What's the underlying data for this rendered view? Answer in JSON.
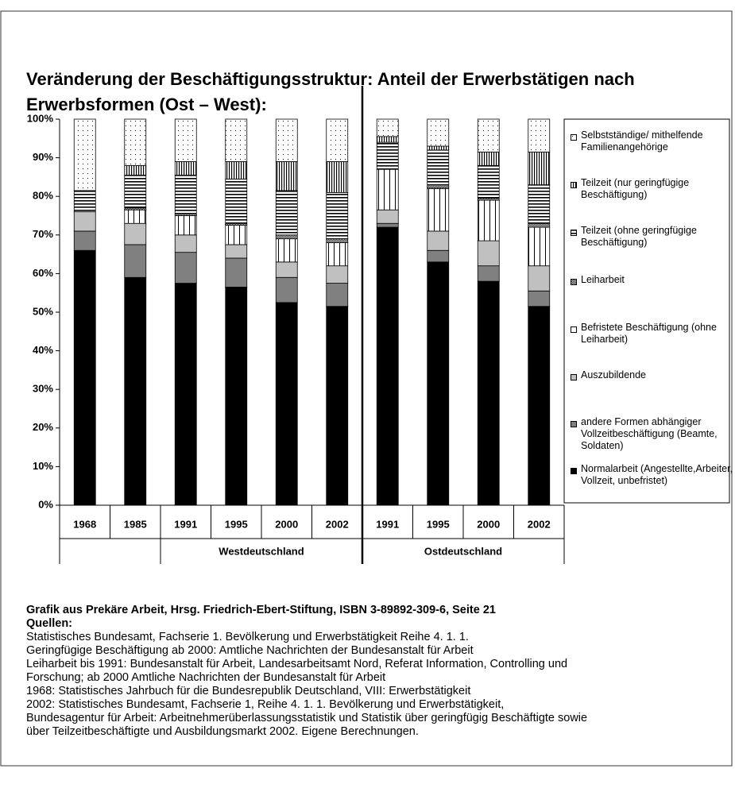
{
  "chart_data": {
    "type": "stacked_bar",
    "title": [
      "Veränderung der Beschäftigungsstruktur: Anteil der Erwerbstätigen nach",
      "Erwerbsformen (Ost – West):"
    ],
    "categories": [
      "1968",
      "1985",
      "1991",
      "1995",
      "2000",
      "2002",
      "1991",
      "1995",
      "2000",
      "2002"
    ],
    "group_labels": [
      "Westdeutschland",
      "Ostdeutschland"
    ],
    "ylim": [
      0,
      100
    ],
    "yticks": [
      {
        "value": 0,
        "label": "0%"
      },
      {
        "value": 10,
        "label": "10%"
      },
      {
        "value": 20,
        "label": "20%"
      },
      {
        "value": 30,
        "label": "30%"
      },
      {
        "value": 40,
        "label": "40%"
      },
      {
        "value": 50,
        "label": "50%"
      },
      {
        "value": 60,
        "label": "60%"
      },
      {
        "value": 70,
        "label": "70%"
      },
      {
        "value": 80,
        "label": "80%"
      },
      {
        "value": 90,
        "label": "90%"
      },
      {
        "value": 100,
        "label": "100%"
      }
    ],
    "series": [
      {
        "name": "Normalarbeit (Angestellte,Arbeiter, Vollzeit, unbefristet)",
        "color": "#000000",
        "pattern": "solid",
        "values": [
          66,
          59,
          57.5,
          56.5,
          52.5,
          51.5,
          72,
          63,
          58,
          51.5
        ]
      },
      {
        "name": "andere Formen abhängiger Vollzeitbeschäftigung (Beamte, Soldaten)",
        "color": "#808080",
        "pattern": "solid",
        "values": [
          5,
          8.5,
          8,
          7.5,
          6.5,
          6,
          1,
          3,
          4,
          4
        ]
      },
      {
        "name": "Auszubildende",
        "color": "#c0c0c0",
        "pattern": "solid",
        "values": [
          5,
          5.5,
          4.5,
          3.5,
          4,
          4.5,
          3.5,
          5,
          6.5,
          6.5
        ]
      },
      {
        "name": "Befristete Beschäftigung (ohne Leiharbeit)",
        "color": "#000000",
        "pattern": "wide-vlines",
        "values": [
          0,
          3.5,
          5,
          5,
          6,
          6,
          10.5,
          11,
          10.5,
          10
        ]
      },
      {
        "name": "Leiharbeit",
        "color": "#000000",
        "pattern": "checker",
        "values": [
          0,
          0.5,
          0.5,
          0.5,
          1,
          1,
          0,
          0.5,
          0.5,
          1
        ]
      },
      {
        "name": "Teilzeit (ohne geringfügige Beschäftigung)",
        "color": "#000000",
        "pattern": "hlines",
        "values": [
          5.5,
          8.5,
          10,
          11.5,
          11.5,
          12,
          7,
          9.5,
          8.5,
          10
        ]
      },
      {
        "name": "Teilzeit (nur geringfügige Beschäftigung)",
        "color": "#000000",
        "pattern": "vlines",
        "values": [
          0,
          2.5,
          3.5,
          4.5,
          7.5,
          8,
          1.5,
          1,
          3.5,
          8.5
        ]
      },
      {
        "name": "Selbstständige/ mithelfende Familienangehörige",
        "color": "#000000",
        "pattern": "dots",
        "values": [
          18.5,
          12,
          11,
          11,
          11,
          11,
          4.5,
          7,
          8.5,
          8.5
        ]
      }
    ]
  },
  "source": {
    "credit": "Grafik aus Prekäre Arbeit, Hrsg. Friedrich-Ebert-Stiftung, ISBN 3-89892-309-6, Seite 21",
    "heading": "Quellen:",
    "lines": [
      "Statistisches Bundesamt, Fachserie 1. Bevölkerung und Erwerbstätigkeit Reihe 4. 1. 1.",
      "Geringfügige Beschäftigung ab 2000: Amtliche Nachrichten der Bundesanstalt für Arbeit",
      "Leiharbeit bis 1991: Bundesanstalt für Arbeit, Landesarbeitsamt Nord, Referat Information, Controlling und",
      "Forschung; ab 2000 Amtliche Nachrichten der Bundesanstalt für Arbeit",
      "1968: Statistisches Jahrbuch für die Bundesrepublik Deutschland, VIII: Erwerbstätigkeit",
      "2002: Statistisches Bundesamt, Fachserie 1, Reihe 4. 1. 1. Bevölkerung und Erwerbstätigkeit,",
      "Bundesagentur für Arbeit: Arbeitnehmerüberlassungsstatistik und Statistik über geringfügig Beschäftigte sowie",
      "über Teilzeitbeschäftigte und Ausbildungsmarkt 2002. Eigene Berechnungen."
    ]
  }
}
